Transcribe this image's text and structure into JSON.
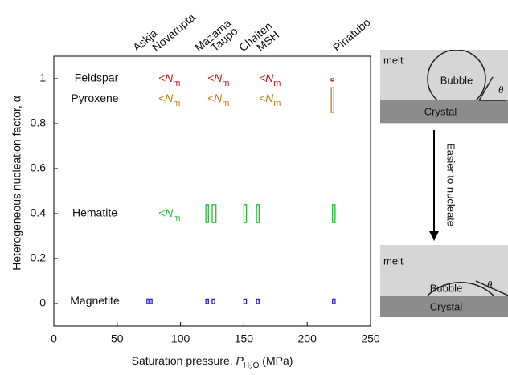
{
  "chart_data": {
    "type": "range_rect",
    "ylabel": "Heterogeneous nucleation factor, α",
    "xlabel_parts": [
      "Saturation pressure, ",
      "P",
      "H",
      "2",
      "O",
      " (MPa)"
    ],
    "xlim": [
      0,
      250
    ],
    "ylim": [
      -0.1,
      1.1
    ],
    "xticks": [
      0,
      50,
      100,
      150,
      200,
      250
    ],
    "yticks": [
      0,
      0.2,
      0.4,
      0.6,
      0.8,
      1
    ],
    "volcanoes": [
      "Askja",
      "Novarupta",
      "Mazama",
      "Taupo",
      "Chaiten",
      "MSH",
      "Pinatubo"
    ],
    "limit_label": {
      "text": "<N",
      "sub": "m"
    },
    "series": [
      {
        "name": "Feldspar",
        "color": "#cc1111",
        "rects": [
          {
            "x": [
              219,
              221
            ],
            "y": [
              0.99,
              1.0
            ]
          }
        ]
      },
      {
        "name": "Pyroxene",
        "color": "#c87a10",
        "rects": [
          {
            "x": [
              219,
              221
            ],
            "y": [
              0.85,
              0.96
            ]
          }
        ]
      },
      {
        "name": "Hematite",
        "color": "#22bb33",
        "rects": [
          {
            "x": [
              120,
              122
            ],
            "y": [
              0.36,
              0.44
            ]
          },
          {
            "x": [
              125,
              128
            ],
            "y": [
              0.36,
              0.44
            ]
          },
          {
            "x": [
              150,
              152
            ],
            "y": [
              0.36,
              0.44
            ]
          },
          {
            "x": [
              160,
              162
            ],
            "y": [
              0.36,
              0.44
            ]
          },
          {
            "x": [
              220,
              222
            ],
            "y": [
              0.36,
              0.44
            ]
          }
        ]
      },
      {
        "name": "Magnetite",
        "color": "#2222cc",
        "rects": [
          {
            "x": [
              73.5,
              75
            ],
            "y": [
              0,
              0.02
            ]
          },
          {
            "x": [
              76,
              77.5
            ],
            "y": [
              0,
              0.02
            ]
          },
          {
            "x": [
              120,
              122
            ],
            "y": [
              0,
              0.02
            ]
          },
          {
            "x": [
              125,
              127
            ],
            "y": [
              0,
              0.02
            ]
          },
          {
            "x": [
              150,
              152
            ],
            "y": [
              0,
              0.02
            ]
          },
          {
            "x": [
              160,
              162
            ],
            "y": [
              0,
              0.02
            ]
          },
          {
            "x": [
              220,
              222
            ],
            "y": [
              0,
              0.02
            ]
          }
        ]
      }
    ]
  },
  "diagram": {
    "top": {
      "medium": "melt",
      "bubble": "Bubble",
      "crystal": "Crystal",
      "angle": "θ"
    },
    "arrow_label": "Easier to nucleate",
    "bottom": {
      "medium": "melt",
      "bubble": "Bubble",
      "crystal": "Crystal",
      "angle": "θ"
    }
  }
}
